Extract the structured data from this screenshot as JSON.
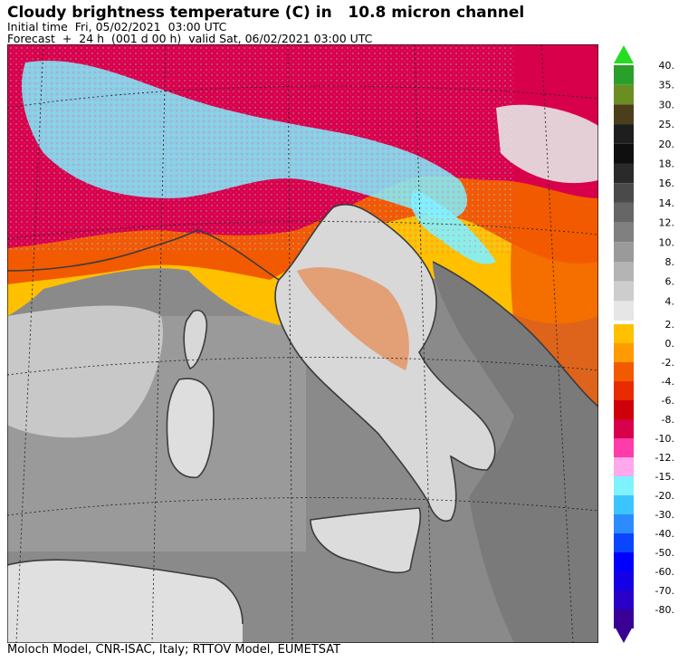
{
  "header": {
    "title": "Cloudy brightness temperature (C) in   10.8 micron channel",
    "initial_time": "Initial time  Fri, 05/02/2021  03:00 UTC",
    "forecast": "Forecast  +  24 h  (001 d 00 h)  valid Sat, 06/02/2021 03:00 UTC"
  },
  "footer": {
    "credit": "Moloch Model, CNR-ISAC, Italy; RTTOV Model, EUMETSAT"
  },
  "colorbar": {
    "upper_labels": [
      "40.",
      "35.",
      "30.",
      "25.",
      "20.",
      "18.",
      "16.",
      "14.",
      "12.",
      "10.",
      "8.",
      "6.",
      "4."
    ],
    "upper_colors": [
      "#2aa02a",
      "#6b8e23",
      "#4a3f1a",
      "#1e1e1e",
      "#0f0f0f",
      "#2a2a2a",
      "#4a4a4a",
      "#666666",
      "#808080",
      "#9a9a9a",
      "#b4b4b4",
      "#cdcdcd",
      "#e6e6e6"
    ],
    "lower_labels": [
      "2.",
      "0.",
      "-2.",
      "-4.",
      "-6.",
      "-8.",
      "-10.",
      "-12.",
      "-15.",
      "-20.",
      "-30.",
      "-40.",
      "-50.",
      "-60.",
      "-70.",
      "-80."
    ],
    "lower_colors": [
      "#ffc000",
      "#ff9a00",
      "#f25a00",
      "#e82c00",
      "#d0000a",
      "#d8004a",
      "#ff3caa",
      "#ffa8ec",
      "#7ff2ff",
      "#3cc4ff",
      "#2c8cff",
      "#0a46ff",
      "#0000ff",
      "#1500e6",
      "#2800c8",
      "#3a0096"
    ]
  }
}
